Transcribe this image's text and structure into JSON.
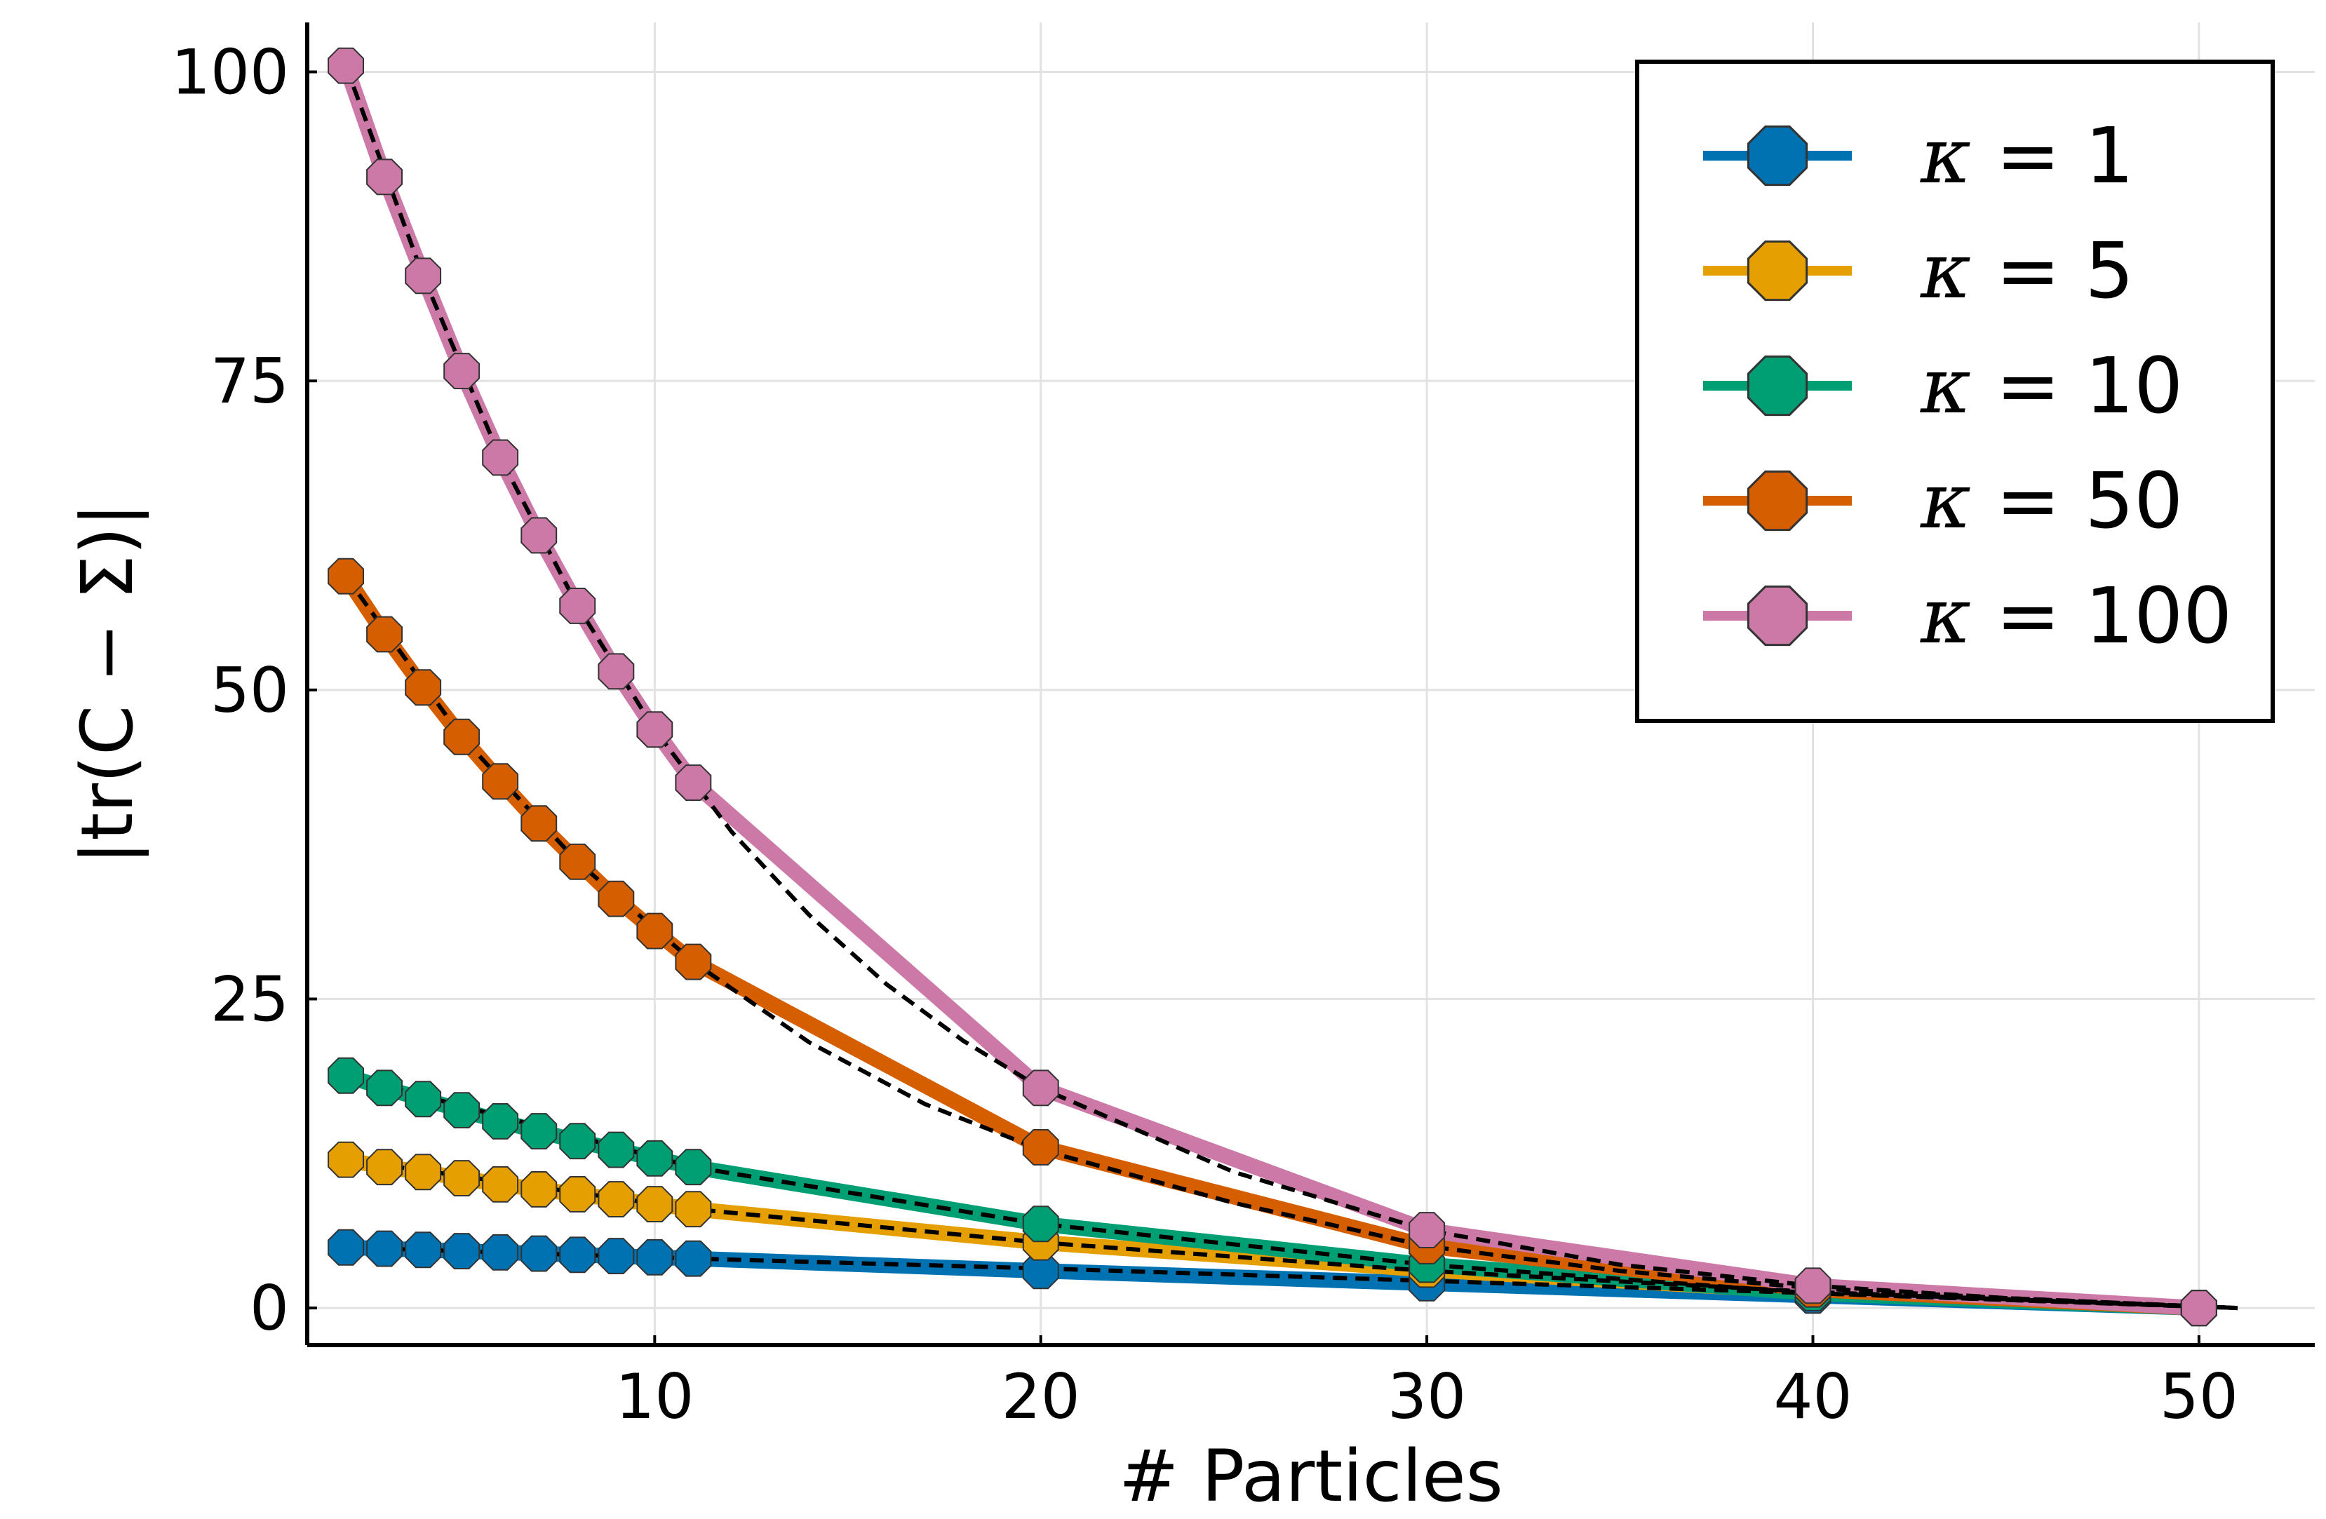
{
  "chart_data": {
    "type": "line",
    "title": "",
    "xlabel": "# Particles",
    "ylabel": "|tr(C − Σ)|",
    "xlim": [
      1,
      53
    ],
    "ylim": [
      -3,
      104
    ],
    "xticks": [
      10,
      20,
      30,
      40,
      50
    ],
    "yticks": [
      0,
      25,
      50,
      75,
      100
    ],
    "xtick_labels": [
      "10",
      "20",
      "30",
      "40",
      "50"
    ],
    "ytick_labels": [
      "0",
      "25",
      "50",
      "75",
      "100"
    ],
    "grid": true,
    "legend_position": "top-right",
    "x": [
      2,
      3,
      4,
      5,
      6,
      7,
      8,
      9,
      10,
      11,
      20,
      30,
      40,
      50
    ],
    "series": [
      {
        "name": "κ = 1",
        "kappa": "κ",
        "eq": " = 1",
        "color": "#0072B2",
        "values": [
          4.9,
          4.8,
          4.7,
          4.6,
          4.5,
          4.4,
          4.3,
          4.2,
          4.1,
          4.0,
          3.0,
          2.0,
          1.0,
          0.0
        ]
      },
      {
        "name": "κ = 5",
        "kappa": "κ",
        "eq": " = 5",
        "color": "#E69F00",
        "values": [
          12.0,
          11.4,
          11.0,
          10.5,
          10.0,
          9.6,
          9.2,
          8.8,
          8.4,
          8.0,
          5.3,
          3.1,
          1.3,
          0.0
        ]
      },
      {
        "name": "κ = 10",
        "kappa": "κ",
        "eq": " = 10",
        "color": "#009E73",
        "values": [
          18.8,
          17.8,
          16.9,
          16.0,
          15.1,
          14.3,
          13.5,
          12.8,
          12.1,
          11.4,
          6.8,
          3.5,
          1.2,
          0.0
        ]
      },
      {
        "name": "κ = 50",
        "kappa": "κ",
        "eq": " = 50",
        "color": "#D55E00",
        "values": [
          59.2,
          54.5,
          50.2,
          46.2,
          42.6,
          39.2,
          36.1,
          33.1,
          30.5,
          28.0,
          13.0,
          5.0,
          1.5,
          0.0
        ]
      },
      {
        "name": "κ = 100",
        "kappa": "κ",
        "eq": " = 100",
        "color": "#CC79A7",
        "values": [
          100.5,
          91.5,
          83.5,
          75.8,
          68.8,
          62.5,
          56.8,
          51.5,
          46.8,
          42.5,
          17.8,
          6.3,
          1.8,
          0.0
        ]
      }
    ],
    "fit_curves": [
      {
        "name": "fit κ = 1",
        "x": [
          2,
          11,
          20,
          30,
          40,
          51
        ],
        "values": [
          4.9,
          4.0,
          3.2,
          2.2,
          1.2,
          0.0
        ]
      },
      {
        "name": "fit κ = 5",
        "x": [
          2,
          11,
          20,
          30,
          40,
          51
        ],
        "values": [
          12.0,
          8.0,
          5.3,
          3.0,
          1.3,
          0.0
        ]
      },
      {
        "name": "fit κ = 10",
        "x": [
          2,
          11,
          20,
          30,
          40,
          51
        ],
        "values": [
          18.8,
          11.4,
          6.8,
          3.5,
          1.2,
          0.0
        ]
      },
      {
        "name": "fit κ = 50",
        "x": [
          2,
          5,
          8,
          11,
          14,
          17,
          20,
          25,
          30,
          35,
          40,
          45,
          51
        ],
        "values": [
          59.2,
          46.2,
          36.1,
          28.0,
          21.5,
          16.5,
          12.8,
          8.5,
          5.0,
          3.0,
          1.6,
          0.8,
          0.0
        ]
      },
      {
        "name": "fit κ = 100",
        "x": [
          2,
          4,
          6,
          8,
          10,
          12,
          14,
          16,
          18,
          20,
          25,
          30,
          35,
          40,
          45,
          51
        ],
        "values": [
          100.5,
          83.5,
          68.8,
          56.8,
          46.8,
          38.5,
          31.8,
          26.2,
          21.6,
          17.8,
          11.0,
          6.3,
          3.5,
          1.8,
          0.8,
          0.0
        ]
      }
    ]
  }
}
